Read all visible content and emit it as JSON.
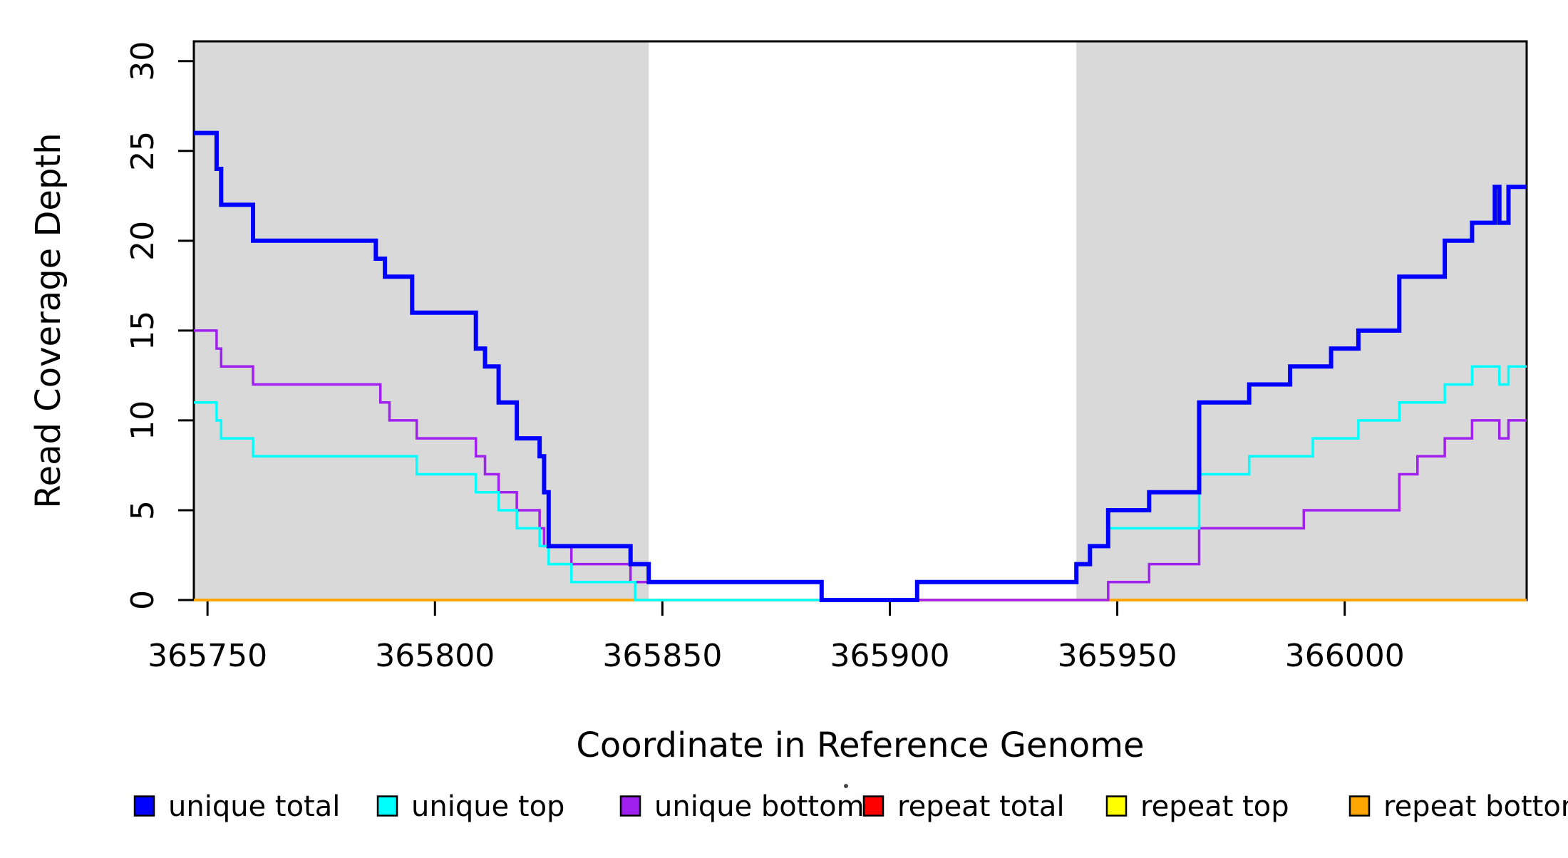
{
  "figure": {
    "kind": "R-style step plot of read coverage depth across a reference genome window"
  },
  "chart_data": {
    "type": "line",
    "step": true,
    "title": "",
    "xlabel": "Coordinate in Reference Genome",
    "ylabel": "Read Coverage Depth",
    "xlim": [
      365747,
      366040
    ],
    "ylim": [
      0,
      31.1
    ],
    "x_ticks": [
      365750,
      365800,
      365850,
      365900,
      365950,
      366000
    ],
    "y_ticks": [
      0,
      5,
      10,
      15,
      20,
      25,
      30
    ],
    "grid": false,
    "legend_position": "bottom",
    "background_color": "#ffffff",
    "shaded_regions": [
      {
        "x0": 365747,
        "x1": 365847,
        "color": "#d9d9d9",
        "note": "left repeat-flanking shaded block"
      },
      {
        "x0": 365941,
        "x1": 366040,
        "color": "#d9d9d9",
        "note": "right repeat-flanking shaded block"
      }
    ],
    "series": [
      {
        "name": "repeat total",
        "color": "#ff0000",
        "line_width": 3.5,
        "points": [
          [
            365747,
            0
          ],
          [
            366040,
            0
          ]
        ]
      },
      {
        "name": "repeat top",
        "color": "#ffff00",
        "line_width": 3.5,
        "points": [
          [
            365747,
            0
          ],
          [
            366040,
            0
          ]
        ]
      },
      {
        "name": "repeat bottom",
        "color": "#ffa500",
        "line_width": 3.5,
        "points": [
          [
            365747,
            0
          ],
          [
            366040,
            0
          ]
        ]
      },
      {
        "name": "unique bottom",
        "color": "#a020f0",
        "line_width": 3.5,
        "points": [
          [
            365747,
            15
          ],
          [
            365752,
            14
          ],
          [
            365753,
            13
          ],
          [
            365760,
            12
          ],
          [
            365788,
            11
          ],
          [
            365790,
            10
          ],
          [
            365796,
            9
          ],
          [
            365809,
            8
          ],
          [
            365811,
            7
          ],
          [
            365814,
            6
          ],
          [
            365818,
            5
          ],
          [
            365823,
            4
          ],
          [
            365824,
            3
          ],
          [
            365830,
            2
          ],
          [
            365843,
            1
          ],
          [
            365885,
            0
          ],
          [
            365948,
            1
          ],
          [
            365957,
            2
          ],
          [
            365968,
            4
          ],
          [
            365991,
            5
          ],
          [
            366012,
            7
          ],
          [
            366016,
            8
          ],
          [
            366022,
            9
          ],
          [
            366028,
            10
          ],
          [
            366034,
            9
          ],
          [
            366036,
            10
          ],
          [
            366040,
            10
          ]
        ]
      },
      {
        "name": "unique top",
        "color": "#00ffff",
        "line_width": 3.5,
        "points": [
          [
            365747,
            11
          ],
          [
            365752,
            10
          ],
          [
            365753,
            9
          ],
          [
            365760,
            8
          ],
          [
            365796,
            7
          ],
          [
            365809,
            6
          ],
          [
            365814,
            5
          ],
          [
            365818,
            4
          ],
          [
            365823,
            3
          ],
          [
            365825,
            2
          ],
          [
            365830,
            1
          ],
          [
            365844,
            0
          ],
          [
            365906,
            1
          ],
          [
            365941,
            2
          ],
          [
            365944,
            3
          ],
          [
            365948,
            4
          ],
          [
            365968,
            7
          ],
          [
            365979,
            8
          ],
          [
            365993,
            9
          ],
          [
            366003,
            10
          ],
          [
            366012,
            11
          ],
          [
            366022,
            12
          ],
          [
            366028,
            13
          ],
          [
            366034,
            12
          ],
          [
            366036,
            13
          ],
          [
            366040,
            13
          ]
        ]
      },
      {
        "name": "unique total",
        "color": "#0000ff",
        "line_width": 6,
        "points": [
          [
            365747,
            26
          ],
          [
            365752,
            24
          ],
          [
            365753,
            22
          ],
          [
            365760,
            20
          ],
          [
            365787,
            19
          ],
          [
            365789,
            18
          ],
          [
            365795,
            16
          ],
          [
            365809,
            14
          ],
          [
            365811,
            13
          ],
          [
            365814,
            11
          ],
          [
            365818,
            9
          ],
          [
            365823,
            8
          ],
          [
            365824,
            6
          ],
          [
            365825,
            3
          ],
          [
            365843,
            2
          ],
          [
            365847,
            1
          ],
          [
            365885,
            0
          ],
          [
            365906,
            1
          ],
          [
            365941,
            2
          ],
          [
            365944,
            3
          ],
          [
            365948,
            5
          ],
          [
            365957,
            6
          ],
          [
            365968,
            11
          ],
          [
            365979,
            12
          ],
          [
            365988,
            13
          ],
          [
            365997,
            14
          ],
          [
            366003,
            15
          ],
          [
            366012,
            18
          ],
          [
            366022,
            20
          ],
          [
            366028,
            21
          ],
          [
            366033,
            23
          ],
          [
            366034,
            21
          ],
          [
            366036,
            23
          ],
          [
            366040,
            23
          ]
        ]
      }
    ]
  },
  "legend": {
    "items": [
      {
        "label": "unique total",
        "color": "#0000ff"
      },
      {
        "label": "unique top",
        "color": "#00ffff"
      },
      {
        "label": "unique bottom",
        "color": "#a020f0"
      },
      {
        "label": "repeat total",
        "color": "#ff0000"
      },
      {
        "label": "repeat top",
        "color": "#ffff00"
      },
      {
        "label": "repeat bottom",
        "color": "#ffa500"
      }
    ]
  },
  "axis_labels": {
    "x": "Coordinate in Reference Genome",
    "y": "Read Coverage Depth"
  }
}
